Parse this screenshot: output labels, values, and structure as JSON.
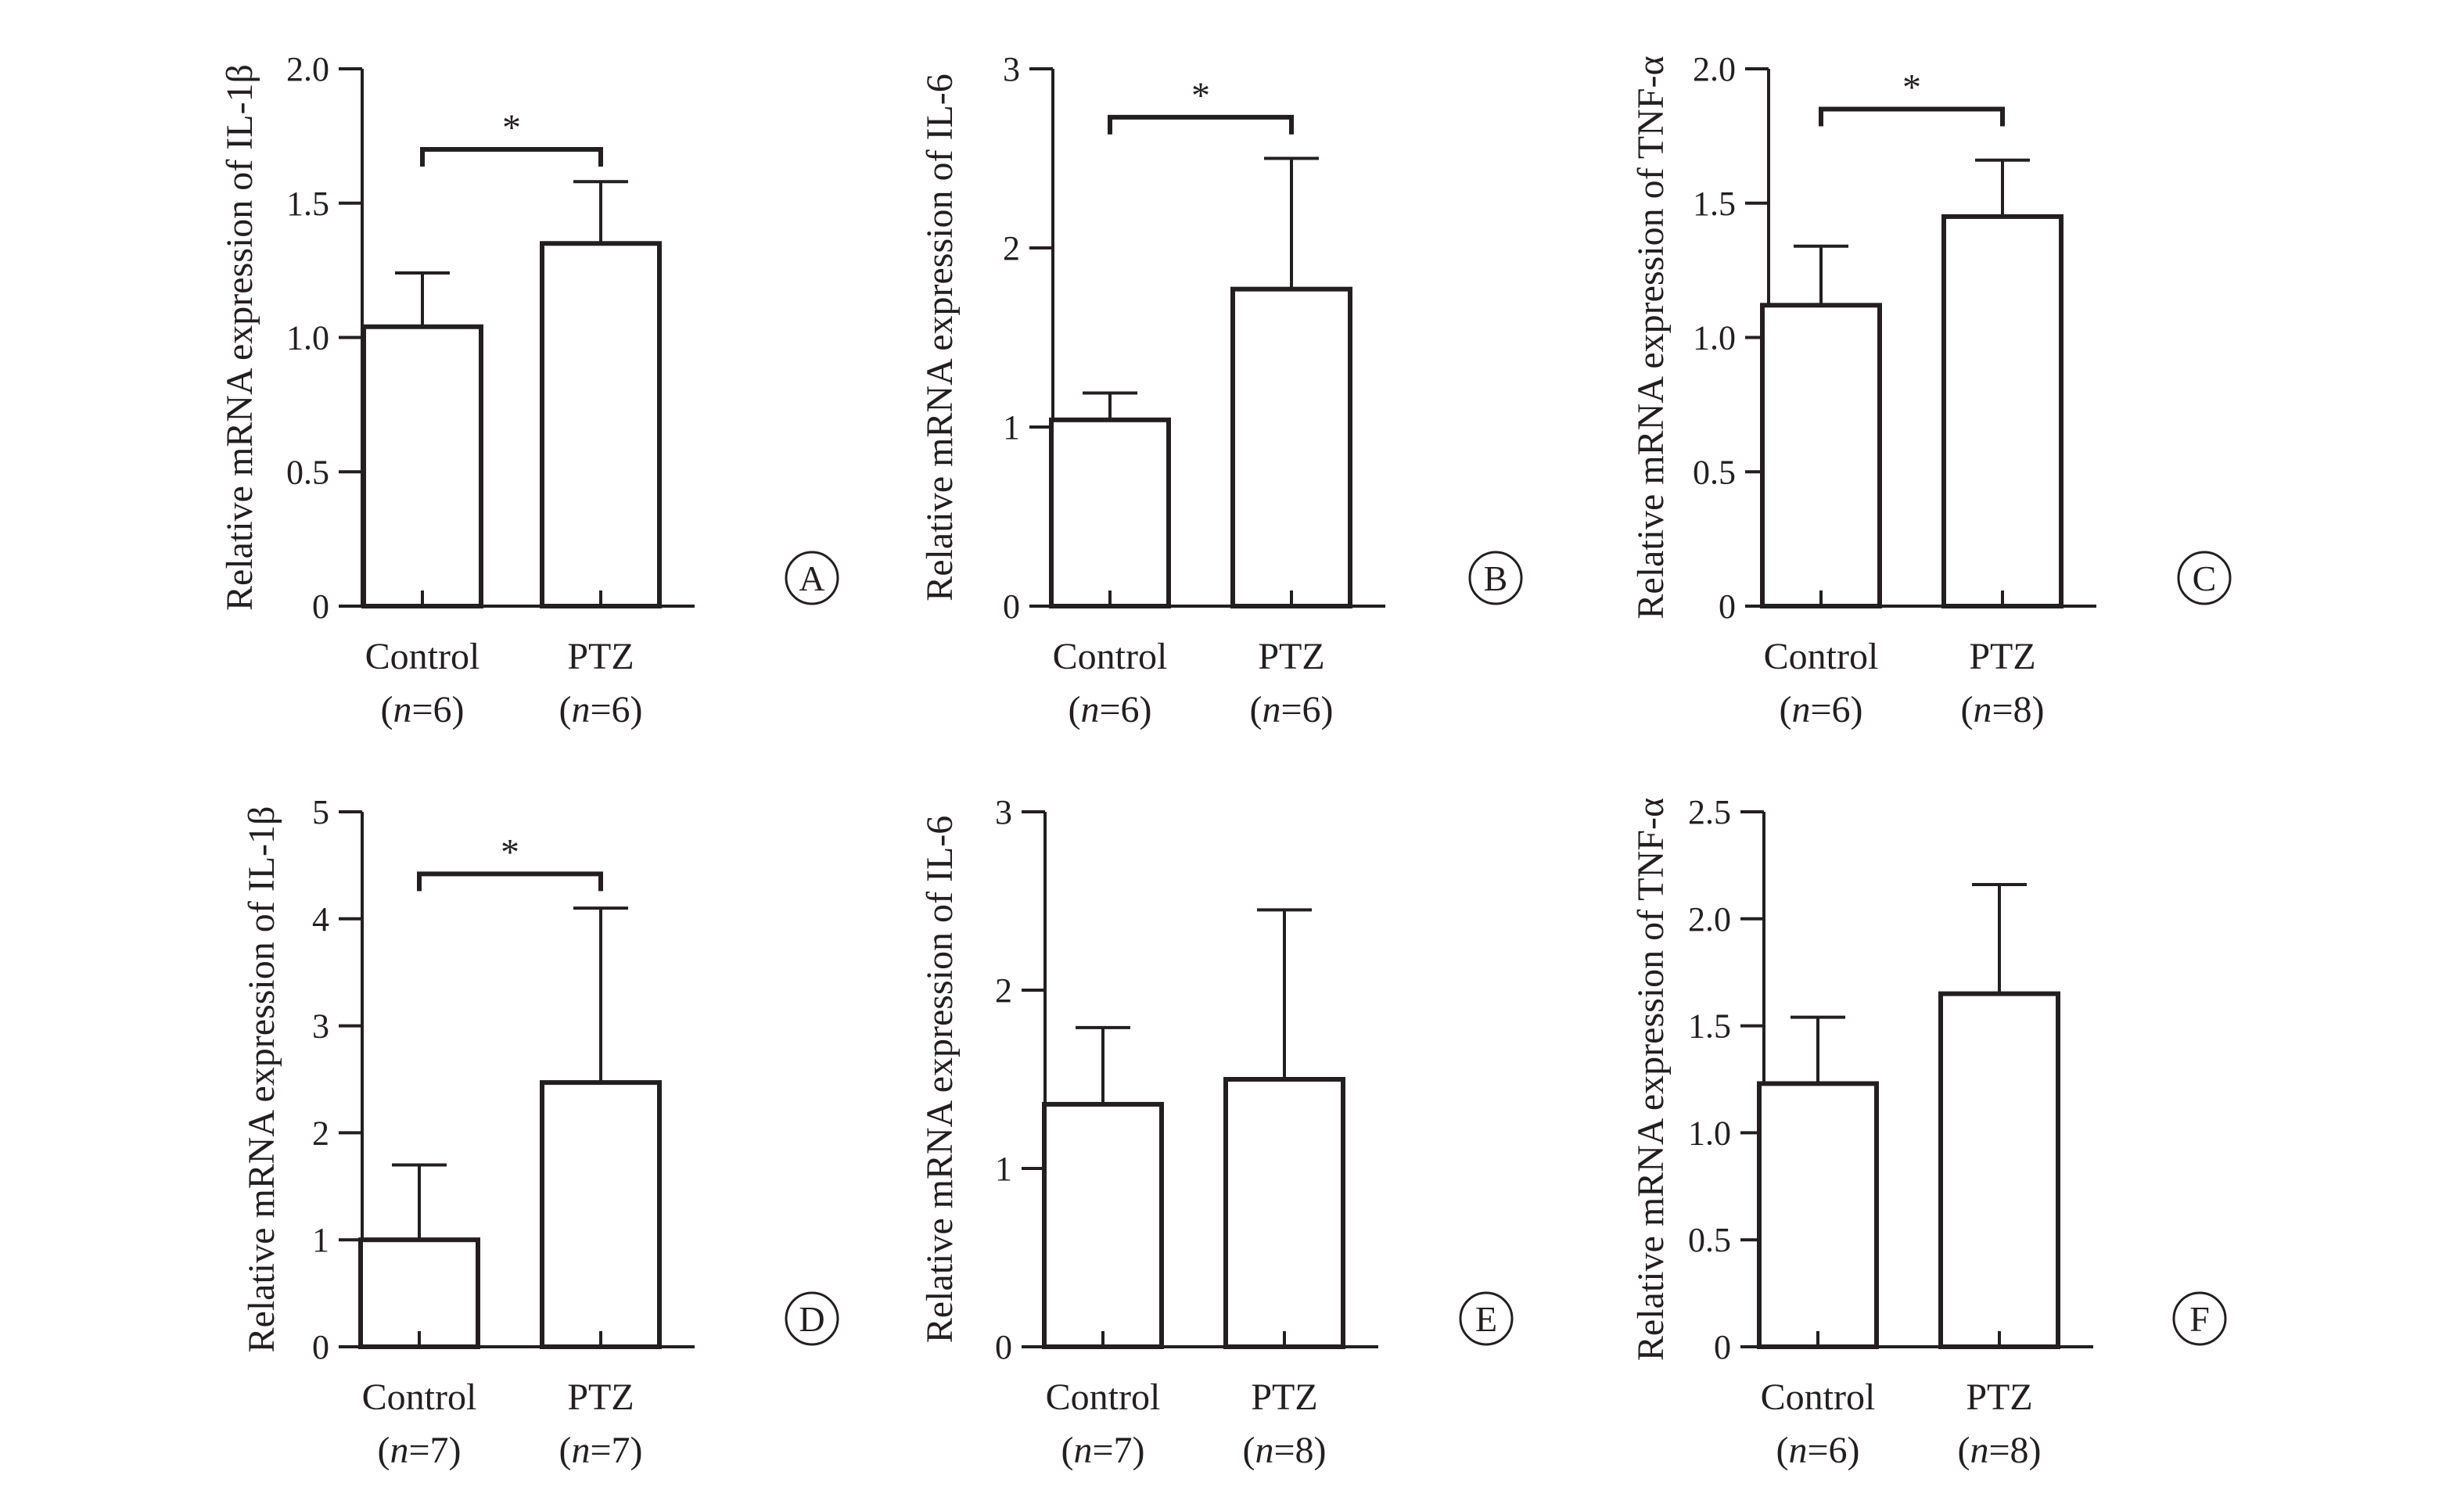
{
  "chart_data": [
    {
      "type": "bar",
      "panel_label": "A",
      "ylabel": "Relative mRNA expression of IL-1β",
      "ylim": [
        0,
        2.0
      ],
      "yticks": [
        "0",
        "0.5",
        "1.0",
        "1.5",
        "2.0"
      ],
      "categories": [
        "Control",
        "PTZ"
      ],
      "n_labels": [
        "(n=6)",
        "(n=6)"
      ],
      "values": [
        1.04,
        1.35
      ],
      "errors": [
        0.2,
        0.23
      ],
      "significance": {
        "between": [
          0,
          1
        ],
        "label": "*",
        "level": 1.7
      }
    },
    {
      "type": "bar",
      "panel_label": "B",
      "ylabel": "Relative mRNA expression of IL-6",
      "ylim": [
        0,
        3
      ],
      "yticks": [
        "0",
        "1",
        "2",
        "3"
      ],
      "categories": [
        "Control",
        "PTZ"
      ],
      "n_labels": [
        "(n=6)",
        "(n=6)"
      ],
      "values": [
        1.04,
        1.77
      ],
      "errors": [
        0.15,
        0.73
      ],
      "significance": {
        "between": [
          0,
          1
        ],
        "label": "*",
        "level": 2.73
      }
    },
    {
      "type": "bar",
      "panel_label": "C",
      "ylabel": "Relative mRNA expression of TNF-α",
      "ylim": [
        0,
        2.0
      ],
      "yticks": [
        "0",
        "0.5",
        "1.0",
        "1.5",
        "2.0"
      ],
      "categories": [
        "Control",
        "PTZ"
      ],
      "n_labels": [
        "(n=6)",
        "(n=8)"
      ],
      "values": [
        1.12,
        1.45
      ],
      "errors": [
        0.22,
        0.21
      ],
      "significance": {
        "between": [
          0,
          1
        ],
        "label": "*",
        "level": 1.85
      }
    },
    {
      "type": "bar",
      "panel_label": "D",
      "ylabel": "Relative mRNA expression of IL-1β",
      "ylim": [
        0,
        5
      ],
      "yticks": [
        "0",
        "1",
        "2",
        "3",
        "4",
        "5"
      ],
      "categories": [
        "Control",
        "PTZ"
      ],
      "n_labels": [
        "(n=7)",
        "(n=7)"
      ],
      "values": [
        1.0,
        2.47
      ],
      "errors": [
        0.7,
        1.63
      ],
      "significance": {
        "between": [
          0,
          1
        ],
        "label": "*",
        "level": 4.42
      }
    },
    {
      "type": "bar",
      "panel_label": "E",
      "ylabel": "Relative mRNA expression of IL-6",
      "ylim": [
        0,
        3
      ],
      "yticks": [
        "0",
        "1",
        "2",
        "3"
      ],
      "categories": [
        "Control",
        "PTZ"
      ],
      "n_labels": [
        "(n=7)",
        "(n=8)"
      ],
      "values": [
        1.36,
        1.5
      ],
      "errors": [
        0.43,
        0.95
      ],
      "significance": null
    },
    {
      "type": "bar",
      "panel_label": "F",
      "ylabel": "Relative mRNA expression of TNF-α",
      "ylim": [
        0,
        2.5
      ],
      "yticks": [
        "0",
        "0.5",
        "1.0",
        "1.5",
        "2.0",
        "2.5"
      ],
      "categories": [
        "Control",
        "PTZ"
      ],
      "n_labels": [
        "(n=6)",
        "(n=8)"
      ],
      "values": [
        1.23,
        1.65
      ],
      "errors": [
        0.31,
        0.51
      ],
      "significance": null
    }
  ]
}
